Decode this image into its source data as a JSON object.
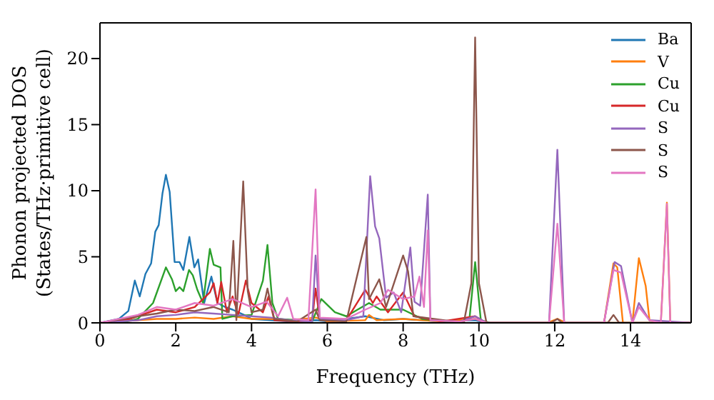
{
  "chart_data": {
    "type": "line",
    "xlabel": "Frequency (THz)",
    "ylabel": "Phonon projected DOS\n(States/THz·primitive cell)",
    "xlim": [
      0,
      15.6
    ],
    "ylim": [
      0,
      22.7
    ],
    "xticks": [
      0,
      2,
      4,
      6,
      8,
      10,
      12,
      14
    ],
    "yticks": [
      0,
      5,
      10,
      15,
      20
    ],
    "legend": "top right",
    "line_style": "solid",
    "series": [
      {
        "name": "Ba",
        "color": "#1f77b4",
        "x": [
          0,
          0.5,
          0.75,
          0.92,
          1.05,
          1.2,
          1.35,
          1.46,
          1.55,
          1.65,
          1.74,
          1.84,
          1.97,
          2.1,
          2.2,
          2.36,
          2.49,
          2.59,
          2.75,
          2.94,
          3.1,
          3.3,
          3.5,
          3.8,
          4.0,
          4.5,
          5,
          5.7,
          6,
          7,
          7.5,
          8,
          9,
          9.9,
          10.2
        ],
        "values": [
          0,
          0.3,
          0.9,
          3.2,
          2.0,
          3.7,
          4.5,
          6.9,
          7.4,
          9.8,
          11.2,
          9.9,
          4.6,
          4.6,
          4.0,
          6.5,
          4.2,
          4.8,
          1.5,
          3.5,
          1.5,
          1.2,
          1.0,
          0.6,
          0.3,
          0.2,
          0.1,
          0.2,
          0.1,
          0.5,
          0.2,
          0.3,
          0.1,
          0.2,
          0
        ]
      },
      {
        "name": "V",
        "color": "#ff7f0e",
        "x": [
          0,
          1,
          1.5,
          2,
          2.5,
          3,
          3.5,
          4,
          4.5,
          5,
          5.7,
          6,
          7,
          7.1,
          7.3,
          8,
          9,
          9.9,
          10.2,
          11.8,
          12.07,
          12.3,
          13.3,
          13.55,
          13.65,
          13.8,
          14.05,
          14.22,
          14.4,
          14.5,
          14.8,
          14.96,
          15.05,
          15.6
        ],
        "values": [
          0,
          0.2,
          0.3,
          0.3,
          0.4,
          0.3,
          0.5,
          0.3,
          0.3,
          0.2,
          0.4,
          0.1,
          0.2,
          0.6,
          0.2,
          0.3,
          0.1,
          0.3,
          0,
          0,
          0.3,
          0,
          0,
          4.5,
          4.2,
          0,
          0,
          4.9,
          2.8,
          0.2,
          0,
          9.1,
          0,
          0
        ]
      },
      {
        "name": "Cu",
        "color": "#2ca02c",
        "x": [
          0,
          0.7,
          1.0,
          1.4,
          1.74,
          1.9,
          2.0,
          2.1,
          2.2,
          2.35,
          2.45,
          2.57,
          2.72,
          2.9,
          3.0,
          3.18,
          3.23,
          3.5,
          4.0,
          4.3,
          4.42,
          4.55,
          4.7,
          5.2,
          5.6,
          5.84,
          6.2,
          6.5,
          7.1,
          7.4,
          8.0,
          8.5,
          9.5,
          9.75,
          9.9,
          10.05,
          10.3,
          15.6
        ],
        "values": [
          0,
          0.1,
          0.3,
          1.5,
          4.2,
          3.3,
          2.4,
          2.7,
          2.4,
          4.0,
          3.6,
          2.5,
          1.5,
          5.6,
          4.4,
          4.2,
          0.3,
          0.5,
          0.6,
          3.2,
          5.9,
          1.5,
          0.3,
          0.2,
          0.1,
          1.8,
          0.8,
          0.5,
          1.5,
          1.0,
          1.0,
          0.3,
          0,
          0.3,
          4.6,
          0.2,
          0,
          0
        ]
      },
      {
        "name": "Cu",
        "color": "#d62728",
        "x": [
          0,
          0.8,
          1.5,
          2.0,
          2.5,
          2.9,
          3.0,
          3.1,
          3.2,
          3.35,
          3.5,
          3.65,
          3.85,
          4.0,
          4.3,
          4.45,
          4.6,
          5.2,
          5.6,
          5.69,
          5.8,
          6.5,
          7.0,
          7.2,
          7.3,
          7.6,
          8.0,
          8.3,
          9.0,
          9.9,
          10.2,
          15.6
        ],
        "values": [
          0,
          0.3,
          1.0,
          0.8,
          1.2,
          2.3,
          3.0,
          1.5,
          3.1,
          0.8,
          2.0,
          0.6,
          3.2,
          1.5,
          0.8,
          2.0,
          0.2,
          0.1,
          0.2,
          2.6,
          0.3,
          0.2,
          2.5,
          1.5,
          2.0,
          0.8,
          2.3,
          0.5,
          0.1,
          0.5,
          0,
          0
        ]
      },
      {
        "name": "S",
        "color": "#9467bd",
        "x": [
          0,
          1,
          1.5,
          2,
          2.5,
          3,
          3.5,
          4,
          4.5,
          5,
          5.6,
          5.69,
          5.8,
          6.5,
          6.95,
          7.13,
          7.26,
          7.37,
          7.55,
          7.75,
          7.95,
          8.19,
          8.3,
          8.45,
          8.65,
          8.72,
          9.5,
          9.9,
          10.2,
          11.85,
          12.07,
          12.25,
          13.3,
          13.58,
          13.75,
          14.05,
          14.22,
          14.5,
          15.6
        ],
        "values": [
          0,
          0.2,
          0.5,
          0.6,
          0.8,
          0.7,
          0.6,
          0.5,
          0.4,
          0.2,
          0.1,
          5.1,
          0.3,
          0.2,
          0.5,
          11.1,
          7.3,
          6.4,
          1.9,
          2.3,
          0.8,
          5.7,
          1.6,
          1.3,
          9.7,
          0.2,
          0.1,
          0.5,
          0,
          0,
          13.1,
          0,
          0,
          4.6,
          4.3,
          0,
          1.5,
          0.2,
          0
        ]
      },
      {
        "name": "S",
        "color": "#8c564b",
        "x": [
          0,
          1,
          1.5,
          2,
          2.5,
          3,
          3.4,
          3.52,
          3.6,
          3.78,
          3.9,
          4.0,
          4.3,
          4.42,
          4.6,
          5.2,
          5.69,
          5.8,
          6.5,
          7.03,
          7.1,
          7.37,
          7.55,
          8.0,
          8.13,
          8.27,
          9.6,
          9.8,
          9.9,
          10.0,
          10.2,
          11.9,
          12.07,
          12.2,
          13.4,
          13.55,
          13.7,
          15.6
        ],
        "values": [
          0,
          0.5,
          0.7,
          1.0,
          0.9,
          1.2,
          0.8,
          6.2,
          0.2,
          10.7,
          2.4,
          0.8,
          1.0,
          2.6,
          0.3,
          0.1,
          1.0,
          0.2,
          0.1,
          6.5,
          1.8,
          3.3,
          1.2,
          5.1,
          3.9,
          0.5,
          0,
          3.0,
          21.6,
          3.0,
          0,
          0,
          0.3,
          0,
          0,
          0.6,
          0,
          0
        ]
      },
      {
        "name": "S",
        "color": "#e377c2",
        "x": [
          0,
          1,
          1.5,
          2,
          2.5,
          3,
          3.5,
          4,
          4.4,
          4.7,
          4.94,
          5.1,
          5.5,
          5.69,
          5.8,
          6.5,
          7.0,
          7.4,
          7.6,
          8.0,
          8.3,
          8.43,
          8.55,
          8.65,
          8.72,
          9.5,
          9.9,
          10.2,
          11.85,
          12.07,
          12.25,
          13.3,
          13.55,
          13.75,
          14.05,
          14.22,
          14.5,
          14.8,
          14.96,
          15.05,
          15.6
        ],
        "values": [
          0,
          0.6,
          1.2,
          1.0,
          1.5,
          1.3,
          1.8,
          1.2,
          1.6,
          0.5,
          1.9,
          0.3,
          0.2,
          10.1,
          0.4,
          0.3,
          1.0,
          1.5,
          2.5,
          1.8,
          2.0,
          3.5,
          1.2,
          7.0,
          0.2,
          0.1,
          0.3,
          0,
          0,
          7.5,
          0,
          0,
          4.0,
          3.8,
          0,
          1.2,
          0.2,
          0,
          9.0,
          0,
          0
        ]
      }
    ]
  }
}
